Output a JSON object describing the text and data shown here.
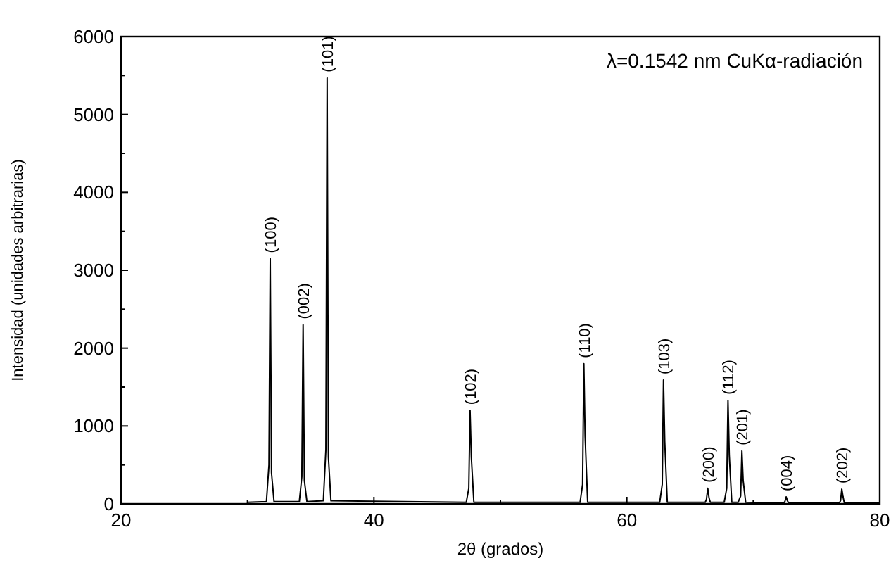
{
  "chart_data": {
    "type": "line",
    "xlabel": "2θ (grados)",
    "ylabel": "Intensidad (unidades arbitrarias)",
    "xlim": [
      20,
      80
    ],
    "xticks": [
      20,
      {
        "value": 30,
        "label": null
      },
      40,
      {
        "value": 50,
        "label": null
      },
      60,
      {
        "value": 70,
        "label": null
      },
      80
    ],
    "ylim": [
      0,
      6000
    ],
    "yticks": [
      0,
      {
        "value": 500,
        "label": null
      },
      1000,
      {
        "value": 1500,
        "label": null
      },
      2000,
      {
        "value": 2500,
        "label": null
      },
      3000,
      {
        "value": 3500,
        "label": null
      },
      4000,
      {
        "value": 4500,
        "label": null
      },
      5000,
      {
        "value": 5500,
        "label": null
      },
      6000
    ],
    "grid": false,
    "marker": "none",
    "line_style": "solid",
    "series": [
      {
        "color": "#000000",
        "x": [
          30.0,
          31.5,
          31.7,
          31.8,
          31.9,
          32.1,
          34.1,
          34.3,
          34.4,
          34.5,
          34.7,
          36.0,
          36.2,
          36.3,
          36.4,
          36.6,
          47.3,
          47.5,
          47.6,
          47.7,
          47.9,
          56.3,
          56.5,
          56.6,
          56.7,
          56.9,
          62.6,
          62.8,
          62.9,
          63.0,
          63.2,
          66.2,
          66.3,
          66.4,
          66.5,
          66.6,
          67.7,
          67.9,
          68.0,
          68.1,
          68.3,
          68.8,
          69.0,
          69.1,
          69.2,
          69.4,
          72.4,
          72.5,
          72.6,
          72.7,
          72.8,
          76.8,
          76.9,
          77.0,
          77.1,
          77.2,
          80.0
        ],
        "values": [
          20,
          30,
          500,
          3150,
          400,
          30,
          30,
          350,
          2300,
          300,
          30,
          40,
          700,
          5470,
          600,
          40,
          20,
          200,
          1200,
          600,
          20,
          20,
          250,
          1800,
          870,
          20,
          20,
          250,
          1590,
          800,
          20,
          20,
          60,
          200,
          80,
          20,
          20,
          200,
          1330,
          630,
          20,
          20,
          100,
          680,
          300,
          20,
          10,
          30,
          90,
          40,
          10,
          10,
          40,
          190,
          90,
          10,
          10
        ]
      }
    ],
    "annotations": [
      "λ=0.1542 nm CuKα-radiación",
      {
        "text": "(100)",
        "x": 31.8,
        "y": 3150
      },
      {
        "text": "(002)",
        "x": 34.4,
        "y": 2300
      },
      {
        "text": "(101)",
        "x": 36.3,
        "y": 5470
      },
      {
        "text": "(102)",
        "x": 47.6,
        "y": 1200
      },
      {
        "text": "(110)",
        "x": 56.6,
        "y": 1800
      },
      {
        "text": "(103)",
        "x": 62.9,
        "y": 1590
      },
      {
        "text": "(200)",
        "x": 66.4,
        "y": 200
      },
      {
        "text": "(112)",
        "x": 68.0,
        "y": 1330
      },
      {
        "text": "(201)",
        "x": 69.1,
        "y": 680
      },
      {
        "text": "(004)",
        "x": 72.6,
        "y": 90
      },
      {
        "text": "(202)",
        "x": 77.0,
        "y": 190
      }
    ]
  }
}
